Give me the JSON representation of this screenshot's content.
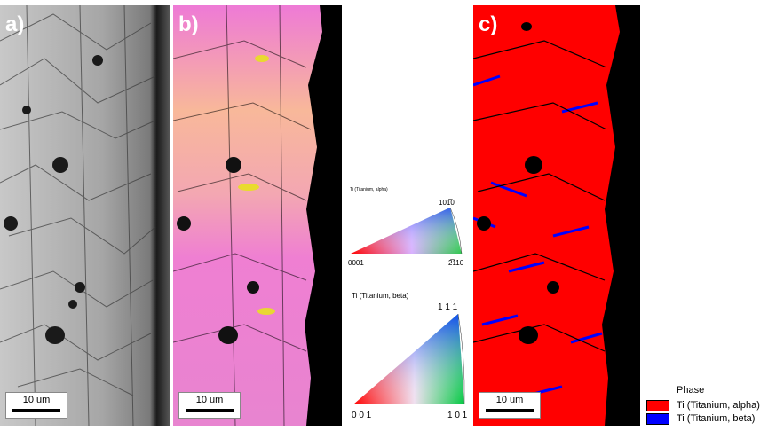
{
  "panels": {
    "a": {
      "label": "a)",
      "scalebar": "10 um"
    },
    "b": {
      "label": "b)",
      "scalebar": "10 um"
    },
    "c": {
      "label": "c)",
      "scalebar": "10 um"
    }
  },
  "ipf": {
    "alpha": {
      "title": "Ti (Titanium, alpha)",
      "corner_bottom_left": "0001",
      "corner_bottom_right": "2̅110",
      "corner_top": "101̅0"
    },
    "beta": {
      "title": "Ti (Titanium, beta)",
      "corner_bottom_left": "0 0 1",
      "corner_bottom_right": "1 0 1",
      "corner_top": "1 1 1"
    }
  },
  "legend": {
    "title": "Phase",
    "items": [
      {
        "label": "Ti (Titanium, alpha)",
        "color": "#ff0000"
      },
      {
        "label": "Ti (Titanium, beta)",
        "color": "#0000ff"
      }
    ]
  },
  "colors": {
    "alpha_phase": "#ff0000",
    "beta_phase": "#0000ff",
    "boundary": "#000000",
    "ipf_pink": "#f07ad8",
    "ipf_peach": "#f8b898"
  }
}
